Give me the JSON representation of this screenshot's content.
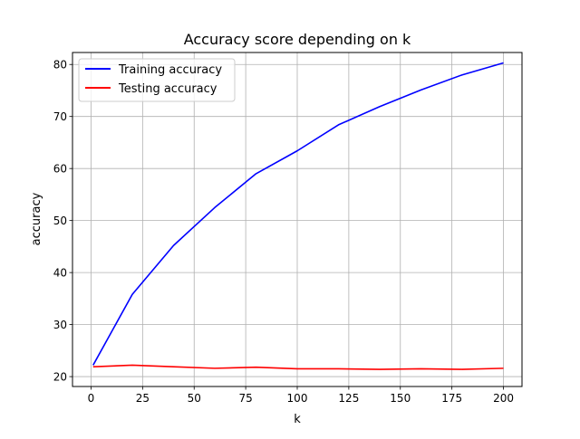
{
  "chart_data": {
    "type": "line",
    "title": "Accuracy score depending on k",
    "xlabel": "k",
    "ylabel": "accuracy",
    "xlim": [
      -9,
      209
    ],
    "ylim": [
      18.1,
      82.3
    ],
    "xticks": [
      0,
      25,
      50,
      75,
      100,
      125,
      150,
      175,
      200
    ],
    "yticks": [
      20,
      30,
      40,
      50,
      60,
      70,
      80
    ],
    "grid": true,
    "legend": {
      "placement": "top-left"
    },
    "x": [
      1,
      20,
      40,
      60,
      80,
      100,
      120,
      140,
      160,
      180,
      200
    ],
    "series": [
      {
        "name": "Training accuracy",
        "color": "#0000ff",
        "values": [
          22.2,
          35.8,
          45.2,
          52.5,
          59.0,
          63.4,
          68.4,
          71.9,
          75.1,
          78.0,
          80.3
        ]
      },
      {
        "name": "Testing accuracy",
        "color": "#ff0000",
        "values": [
          21.9,
          22.2,
          21.9,
          21.6,
          21.8,
          21.5,
          21.5,
          21.4,
          21.5,
          21.4,
          21.6
        ]
      }
    ]
  }
}
